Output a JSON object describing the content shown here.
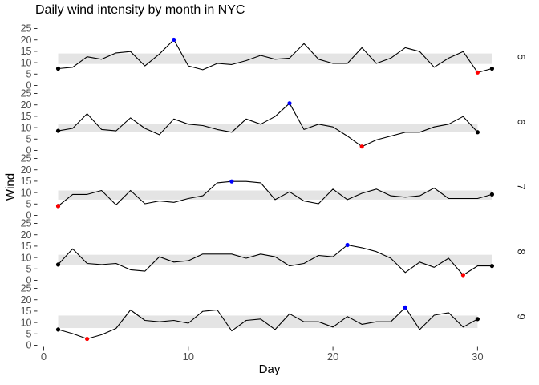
{
  "colors": {
    "background": "#ffffff",
    "band": "#e4e4e4",
    "line": "#000000",
    "endpoint_point": "#000000",
    "max_point": "#0000ff",
    "min_point": "#ff0000",
    "tick_mark": "#333333",
    "tick_label": "#4d4d4d",
    "strip_label": "#1a1a1a",
    "axis_title": "#000000",
    "title": "#000000"
  },
  "chart_data": {
    "type": "line",
    "title": "Daily wind intensity by month in NYC",
    "xlabel": "Day",
    "ylabel": "Wind",
    "x_ticks": [
      0,
      10,
      20,
      30
    ],
    "y_ticks": [
      0,
      5,
      10,
      15,
      20,
      25
    ],
    "ylim": [
      0,
      25
    ],
    "xlim": [
      0,
      31
    ],
    "grid": "off",
    "legend": "none",
    "facet_side": "right",
    "facets": [
      {
        "month": "5",
        "day_start": 1,
        "wind": [
          7.4,
          8.0,
          12.6,
          11.5,
          14.3,
          14.9,
          8.6,
          13.8,
          20.1,
          8.6,
          6.9,
          9.7,
          9.2,
          10.9,
          13.2,
          11.5,
          12.0,
          18.4,
          11.5,
          9.7,
          9.7,
          16.6,
          9.7,
          12.0,
          16.6,
          14.9,
          8.0,
          12.0,
          14.9,
          5.7,
          7.4
        ],
        "band_lower": 9.45,
        "band_upper": 14.05,
        "max_point": {
          "day": 9,
          "value": 20.1
        },
        "min_point": {
          "day": 30,
          "value": 5.7
        },
        "endpoints": [
          {
            "day": 1,
            "value": 7.4
          },
          {
            "day": 31,
            "value": 7.4
          }
        ]
      },
      {
        "month": "6",
        "day_start": 1,
        "wind": [
          8.6,
          9.7,
          16.1,
          9.2,
          8.6,
          14.3,
          9.7,
          6.9,
          13.8,
          11.5,
          10.9,
          9.2,
          8.0,
          13.8,
          11.5,
          14.9,
          20.7,
          9.2,
          11.5,
          10.3,
          6.3,
          1.7,
          4.6,
          6.3,
          8.0,
          8.0,
          10.3,
          11.5,
          14.9,
          8.0
        ],
        "band_lower": 8.0,
        "band_upper": 11.5,
        "max_point": {
          "day": 17,
          "value": 20.7
        },
        "min_point": {
          "day": 22,
          "value": 1.7
        },
        "endpoints": [
          {
            "day": 1,
            "value": 8.6
          },
          {
            "day": 30,
            "value": 8.0
          }
        ]
      },
      {
        "month": "7",
        "day_start": 1,
        "wind": [
          4.1,
          9.2,
          9.2,
          10.9,
          4.6,
          10.9,
          5.1,
          6.3,
          5.7,
          7.4,
          8.6,
          14.3,
          14.9,
          14.9,
          14.3,
          6.9,
          10.3,
          6.3,
          5.1,
          11.5,
          6.9,
          9.7,
          11.5,
          8.6,
          8.0,
          8.6,
          12.0,
          7.4,
          7.4,
          7.4,
          9.2
        ],
        "band_lower": 6.9,
        "band_upper": 10.9,
        "max_point": {
          "day": 13,
          "value": 14.9
        },
        "min_point": {
          "day": 1,
          "value": 4.1
        },
        "endpoints": [
          {
            "day": 1,
            "value": 4.1
          },
          {
            "day": 31,
            "value": 9.2
          }
        ]
      },
      {
        "month": "8",
        "day_start": 1,
        "wind": [
          6.9,
          13.8,
          7.4,
          6.9,
          7.4,
          4.6,
          4.0,
          10.3,
          8.0,
          8.6,
          11.5,
          11.5,
          11.5,
          9.7,
          11.5,
          10.3,
          6.3,
          7.4,
          10.9,
          10.3,
          15.5,
          14.3,
          12.6,
          9.7,
          3.4,
          8.0,
          5.7,
          9.7,
          2.3,
          6.3,
          6.3
        ],
        "band_lower": 6.6,
        "band_upper": 11.2,
        "max_point": {
          "day": 21,
          "value": 15.5
        },
        "min_point": {
          "day": 29,
          "value": 2.3
        },
        "endpoints": [
          {
            "day": 1,
            "value": 6.9
          },
          {
            "day": 31,
            "value": 6.3
          }
        ]
      },
      {
        "month": "9",
        "day_start": 1,
        "wind": [
          6.9,
          5.1,
          2.8,
          4.6,
          7.4,
          15.5,
          10.9,
          10.3,
          10.9,
          9.7,
          14.9,
          15.5,
          6.3,
          10.9,
          11.5,
          6.9,
          13.8,
          10.3,
          10.3,
          8.0,
          12.6,
          9.2,
          10.3,
          10.3,
          16.6,
          6.9,
          13.2,
          14.3,
          8.0,
          11.5
        ],
        "band_lower": 7.55,
        "band_upper": 13.05,
        "max_point": {
          "day": 25,
          "value": 16.6
        },
        "min_point": {
          "day": 3,
          "value": 2.8
        },
        "endpoints": [
          {
            "day": 1,
            "value": 6.9
          },
          {
            "day": 30,
            "value": 11.5
          }
        ]
      }
    ]
  }
}
